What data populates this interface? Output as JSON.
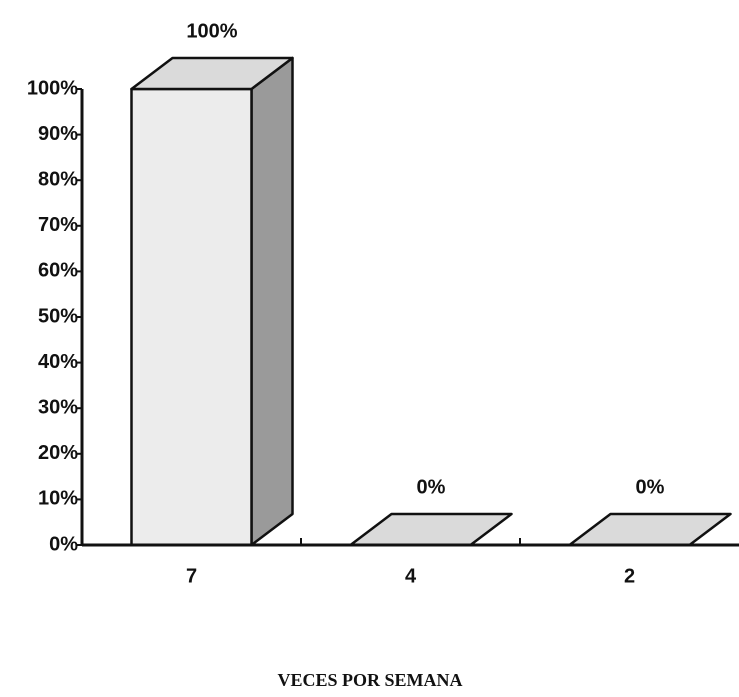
{
  "chart_data": {
    "type": "bar3d",
    "x_label": "VECES POR SEMANA",
    "categories": [
      "7",
      "4",
      "2"
    ],
    "values": [
      100,
      0,
      0
    ],
    "value_labels": [
      "100%",
      "0%",
      "0%"
    ],
    "color": "#ececec",
    "ylim": [
      0,
      100
    ],
    "yticks": [
      {
        "value": 0,
        "label": "0%"
      },
      {
        "value": 10,
        "label": "10%"
      },
      {
        "value": 20,
        "label": "20%"
      },
      {
        "value": 30,
        "label": "30%"
      },
      {
        "value": 40,
        "label": "40%"
      },
      {
        "value": 50,
        "label": "50%"
      },
      {
        "value": 60,
        "label": "60%"
      },
      {
        "value": 70,
        "label": "70%"
      },
      {
        "value": 80,
        "label": "80%"
      },
      {
        "value": 90,
        "label": "90%"
      },
      {
        "value": 100,
        "label": "100%"
      }
    ]
  }
}
